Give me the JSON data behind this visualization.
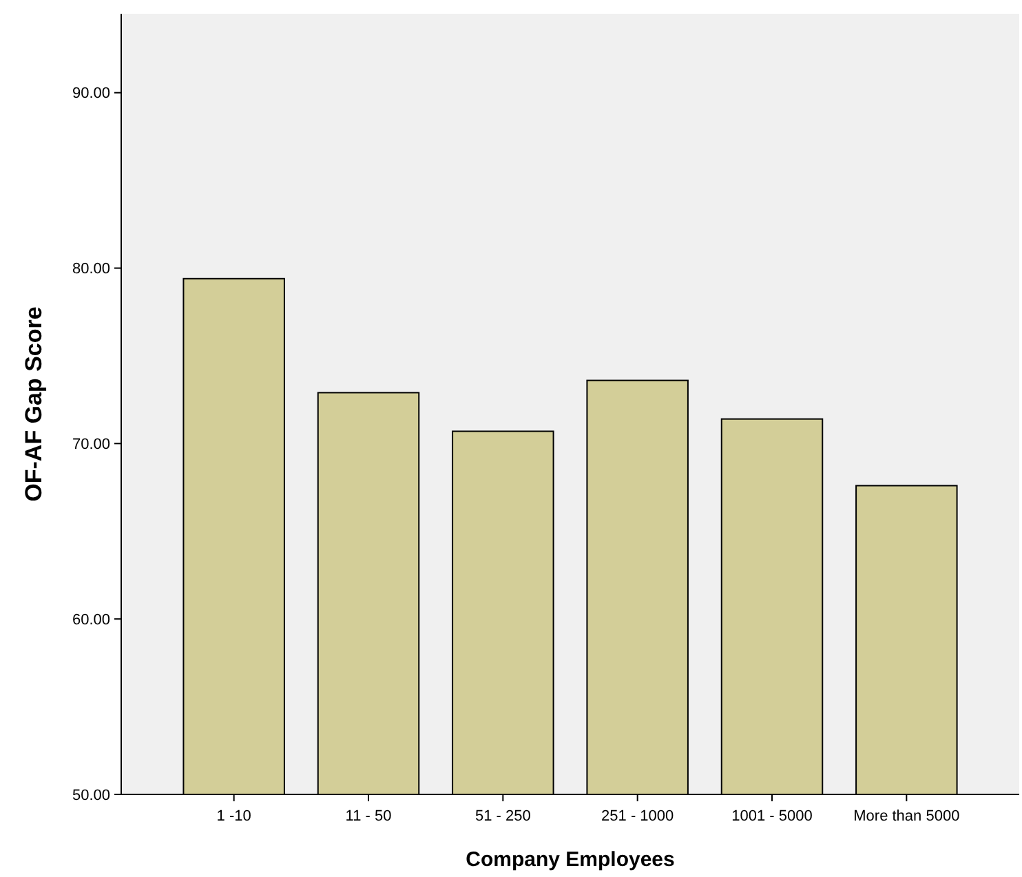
{
  "chart_data": {
    "type": "bar",
    "xlabel": "Company Employees",
    "ylabel": "OF-AF Gap Score",
    "categories": [
      "1 -10",
      "11 - 50",
      "51 - 250",
      "251 - 1000",
      "1001 - 5000",
      "More than 5000"
    ],
    "values": [
      79.4,
      72.9,
      70.7,
      73.6,
      71.4,
      67.6
    ],
    "color": "#d3ce98",
    "ylim": [
      50,
      94.5
    ],
    "yticks": [
      {
        "value": 50,
        "label": "50.00"
      },
      {
        "value": 60,
        "label": "60.00"
      },
      {
        "value": 70,
        "label": "70.00"
      },
      {
        "value": 80,
        "label": "80.00"
      },
      {
        "value": 90,
        "label": "90.00"
      }
    ],
    "grid": false
  }
}
